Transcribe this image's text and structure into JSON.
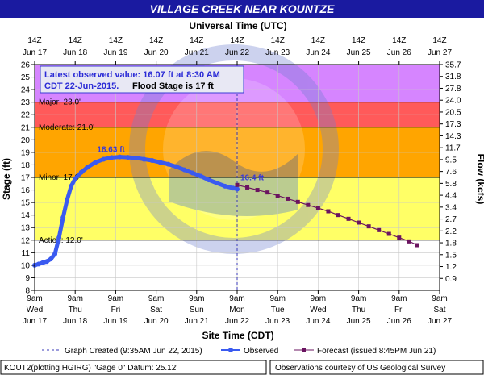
{
  "chart_data": {
    "type": "line",
    "title": "VILLAGE CREEK NEAR KOUNTZE",
    "top_axis_title": "Universal Time (UTC)",
    "bottom_axis_title": "Site Time (CDT)",
    "y_left_label": "Stage (ft)",
    "y_right_label": "Flow (kcfs)",
    "ylim": [
      8,
      26
    ],
    "xlim_days_label": [
      "Jun 17 9am",
      "Jun 27 9am"
    ],
    "y_ticks": [
      8,
      9,
      10,
      11,
      12,
      13,
      14,
      15,
      16,
      17,
      18,
      19,
      20,
      21,
      22,
      23,
      24,
      25,
      26
    ],
    "flow_ticks": [
      {
        "stage": 9,
        "label": "0.9"
      },
      {
        "stage": 10,
        "label": "1.2"
      },
      {
        "stage": 11,
        "label": "1.5"
      },
      {
        "stage": 12,
        "label": "1.8"
      },
      {
        "stage": 13,
        "label": "2.2"
      },
      {
        "stage": 14,
        "label": "2.7"
      },
      {
        "stage": 15,
        "label": "3.4"
      },
      {
        "stage": 16,
        "label": "4.4"
      },
      {
        "stage": 17,
        "label": "5.8"
      },
      {
        "stage": 18,
        "label": "7.6"
      },
      {
        "stage": 19,
        "label": "9.5"
      },
      {
        "stage": 20,
        "label": "11.7"
      },
      {
        "stage": 21,
        "label": "14.3"
      },
      {
        "stage": 22,
        "label": "17.3"
      },
      {
        "stage": 23,
        "label": "20.5"
      },
      {
        "stage": 24,
        "label": "24.0"
      },
      {
        "stage": 25,
        "label": "27.8"
      },
      {
        "stage": 26,
        "label": "31.8"
      },
      {
        "stage": 27,
        "label": "35.7"
      }
    ],
    "top_ticks": [
      [
        "14Z",
        "Jun 17"
      ],
      [
        "14Z",
        "Jun 18"
      ],
      [
        "14Z",
        "Jun 19"
      ],
      [
        "14Z",
        "Jun 20"
      ],
      [
        "14Z",
        "Jun 21"
      ],
      [
        "14Z",
        "Jun 22"
      ],
      [
        "14Z",
        "Jun 23"
      ],
      [
        "14Z",
        "Jun 24"
      ],
      [
        "14Z",
        "Jun 25"
      ],
      [
        "14Z",
        "Jun 26"
      ],
      [
        "14Z",
        "Jun 27"
      ]
    ],
    "bottom_ticks": [
      [
        "9am",
        "Wed",
        "Jun 17"
      ],
      [
        "9am",
        "Thu",
        "Jun 18"
      ],
      [
        "9am",
        "Fri",
        "Jun 19"
      ],
      [
        "9am",
        "Sat",
        "Jun 20"
      ],
      [
        "9am",
        "Sun",
        "Jun 21"
      ],
      [
        "9am",
        "Mon",
        "Jun 22"
      ],
      [
        "9am",
        "Tue",
        "Jun 23"
      ],
      [
        "9am",
        "Wed",
        "Jun 24"
      ],
      [
        "9am",
        "Thu",
        "Jun 25"
      ],
      [
        "9am",
        "Fri",
        "Jun 26"
      ],
      [
        "9am",
        "Sat",
        "Jun 27"
      ]
    ],
    "thresholds": [
      {
        "name": "Action",
        "label": "Action: 12.0'",
        "value": 12.0
      },
      {
        "name": "Minor",
        "label": "Minor: 17.0'",
        "value": 17.0
      },
      {
        "name": "Moderate",
        "label": "Moderate: 21.0'",
        "value": 21.0
      },
      {
        "name": "Major",
        "label": "Major: 23.0'",
        "value": 23.0
      }
    ],
    "bands": [
      {
        "from": 8,
        "to": 12,
        "color": "#ffffff"
      },
      {
        "from": 12,
        "to": 17,
        "color": "#ffff66"
      },
      {
        "from": 17,
        "to": 21,
        "color": "#ffa500"
      },
      {
        "from": 21,
        "to": 23,
        "color": "#ff5a5a"
      },
      {
        "from": 23,
        "to": 26,
        "color": "#d685ff"
      }
    ],
    "series": [
      {
        "name": "Observed",
        "color": "#3a5af0",
        "points": [
          [
            0.0,
            10.0
          ],
          [
            0.1,
            10.1
          ],
          [
            0.2,
            10.2
          ],
          [
            0.3,
            10.3
          ],
          [
            0.4,
            10.5
          ],
          [
            0.5,
            10.9
          ],
          [
            0.6,
            12.2
          ],
          [
            0.7,
            13.8
          ],
          [
            0.8,
            15.2
          ],
          [
            0.9,
            16.3
          ],
          [
            1.0,
            16.9
          ],
          [
            1.15,
            17.4
          ],
          [
            1.3,
            17.8
          ],
          [
            1.5,
            18.2
          ],
          [
            1.7,
            18.45
          ],
          [
            1.9,
            18.58
          ],
          [
            2.1,
            18.63
          ],
          [
            2.3,
            18.6
          ],
          [
            2.5,
            18.55
          ],
          [
            2.7,
            18.45
          ],
          [
            2.9,
            18.35
          ],
          [
            3.1,
            18.2
          ],
          [
            3.3,
            18.05
          ],
          [
            3.5,
            17.85
          ],
          [
            3.7,
            17.6
          ],
          [
            3.9,
            17.35
          ],
          [
            4.1,
            17.1
          ],
          [
            4.3,
            16.8
          ],
          [
            4.5,
            16.55
          ],
          [
            4.7,
            16.3
          ],
          [
            4.9,
            16.15
          ],
          [
            5.0,
            16.07
          ]
        ]
      },
      {
        "name": "Forecast (issued 8:45PM Jun 21)",
        "color": "#6b1460",
        "points": [
          [
            5.0,
            16.4
          ],
          [
            5.25,
            16.2
          ],
          [
            5.5,
            16.0
          ],
          [
            5.75,
            15.8
          ],
          [
            6.0,
            15.55
          ],
          [
            6.25,
            15.3
          ],
          [
            6.5,
            15.05
          ],
          [
            6.75,
            14.8
          ],
          [
            7.0,
            14.55
          ],
          [
            7.25,
            14.3
          ],
          [
            7.5,
            14.0
          ],
          [
            7.75,
            13.7
          ],
          [
            8.0,
            13.4
          ],
          [
            8.25,
            13.1
          ],
          [
            8.5,
            12.8
          ],
          [
            8.75,
            12.5
          ],
          [
            9.0,
            12.2
          ],
          [
            9.25,
            11.9
          ],
          [
            9.45,
            11.6
          ]
        ]
      }
    ],
    "annotations": [
      {
        "text": "18.63 ft",
        "x": 2.1,
        "y": 18.63
      },
      {
        "text": "16.4 ft",
        "x": 5.0,
        "y": 16.4
      }
    ],
    "current_time_x": 5.0
  },
  "info_box": {
    "line1": "Latest observed value: 16.07 ft at 8:30 AM",
    "line2a": "CDT 22-Jun-2015.",
    "line2b": "Flood Stage is 17 ft"
  },
  "legend": {
    "graph_created": "Graph Created (9:35AM Jun 22, 2015)",
    "observed": "Observed",
    "forecast": "Forecast (issued 8:45PM Jun 21)"
  },
  "footer": {
    "left": "KOUT2(plotting HGIRG) \"Gage 0\" Datum: 25.12'",
    "right": "Observations courtesy of US Geological Survey"
  },
  "colors": {
    "title_bar": "#1a1aa0",
    "observed": "#3a5af0",
    "forecast": "#6b1460",
    "grid": "#c8c8c8"
  }
}
